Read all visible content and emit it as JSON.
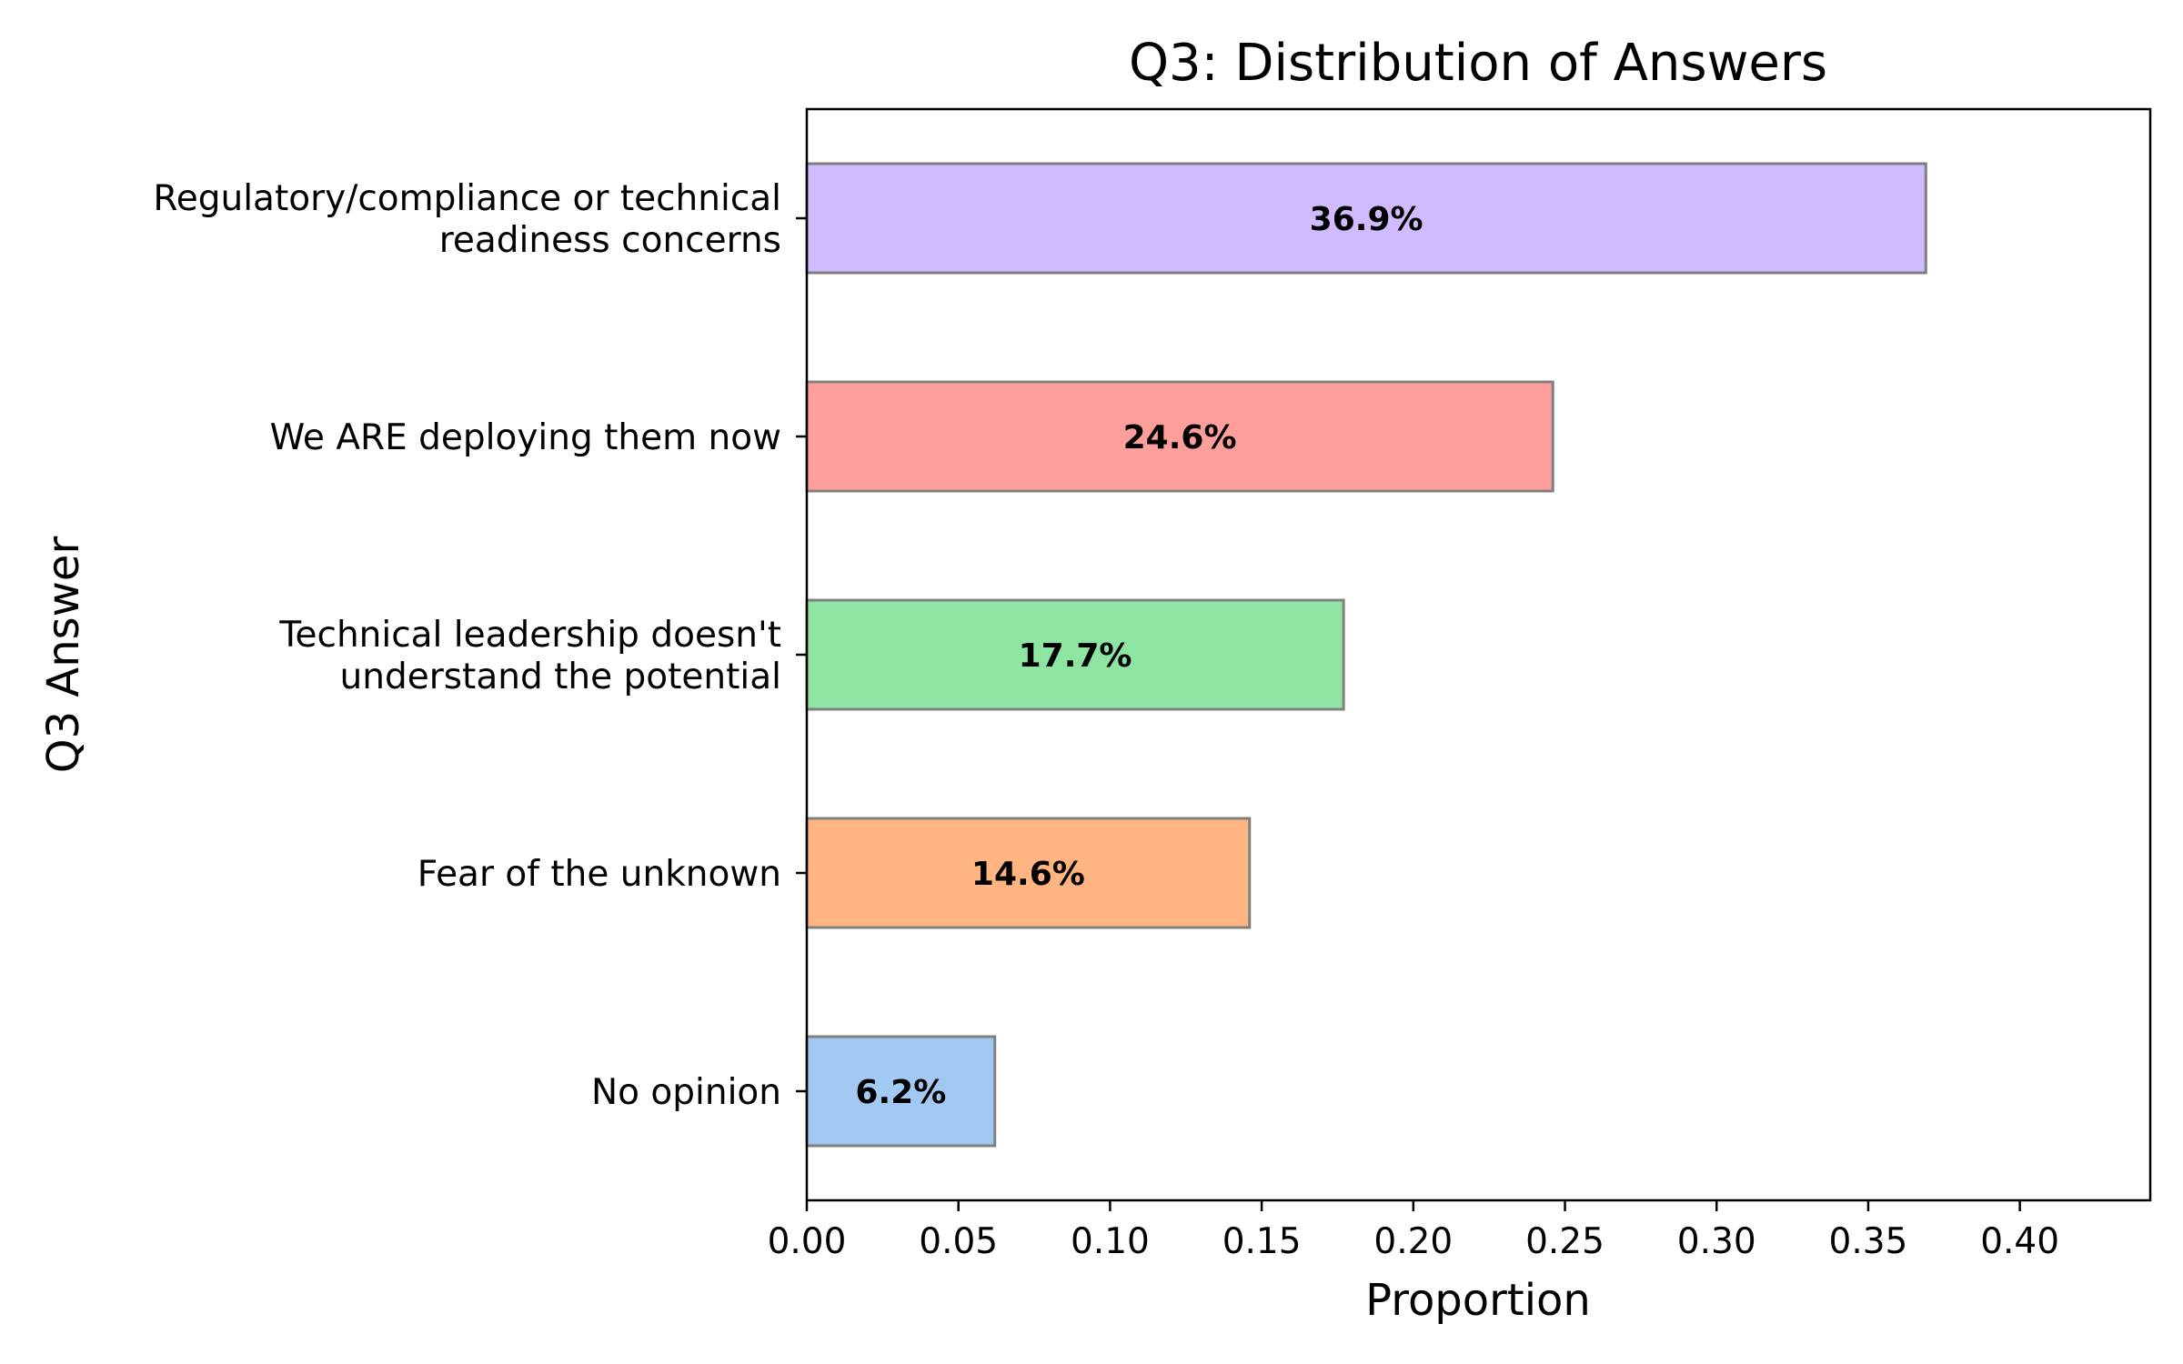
{
  "chart_data": {
    "type": "bar",
    "orientation": "horizontal",
    "title": "Q3: Distribution of Answers",
    "xlabel": "Proportion",
    "ylabel": "Q3 Answer",
    "xlim": [
      0,
      0.443
    ],
    "xticks": [
      0.0,
      0.05,
      0.1,
      0.15,
      0.2,
      0.25,
      0.3,
      0.35,
      0.4
    ],
    "xtick_labels": [
      "0.00",
      "0.05",
      "0.10",
      "0.15",
      "0.20",
      "0.25",
      "0.30",
      "0.35",
      "0.40"
    ],
    "grid": false,
    "bars": [
      {
        "lines": [
          "Regulatory/compliance or technical",
          "readiness concerns"
        ],
        "value": 0.369,
        "label": "36.9%",
        "color": "#cfbbfd"
      },
      {
        "lines": [
          "We ARE deploying them now"
        ],
        "value": 0.246,
        "label": "24.6%",
        "color": "#ff9f9b"
      },
      {
        "lines": [
          "Technical leadership doesn't",
          "understand the potential"
        ],
        "value": 0.177,
        "label": "17.7%",
        "color": "#8de5a1"
      },
      {
        "lines": [
          "Fear of the unknown"
        ],
        "value": 0.146,
        "label": "14.6%",
        "color": "#ffb482"
      },
      {
        "lines": [
          "No opinion"
        ],
        "value": 0.062,
        "label": "6.2%",
        "color": "#a1c9f4"
      }
    ],
    "edge_color": "#808080"
  }
}
